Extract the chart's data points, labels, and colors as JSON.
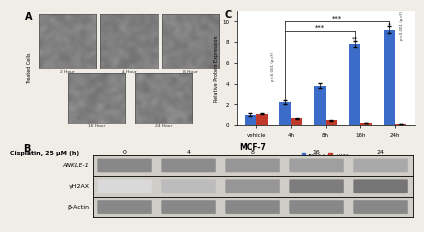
{
  "panel_C": {
    "categories": [
      "vehicle",
      "4h",
      "8h",
      "16h",
      "24h"
    ],
    "ankle1_values": [
      1.0,
      2.2,
      3.8,
      7.8,
      9.2
    ],
    "yh2ax_values": [
      1.1,
      0.65,
      0.45,
      0.18,
      0.08
    ],
    "ankle1_color": "#3b6cc9",
    "yh2ax_color": "#c0392b",
    "ylabel": "Relative Protein Expression",
    "ylim": [
      0,
      11
    ],
    "yticks": [
      0,
      2,
      4,
      6,
      8,
      10
    ],
    "ankle1_label": "ANKLE-1",
    "yh2ax_label": "γH2AX",
    "ankle1_errors": [
      0.12,
      0.18,
      0.22,
      0.3,
      0.35
    ],
    "yh2ax_errors": [
      0.08,
      0.06,
      0.05,
      0.03,
      0.02
    ]
  },
  "panel_B": {
    "title": "MCF-7",
    "label_left": "Cisplatin, 25 μM (h)",
    "rows": [
      "ANKLE-1",
      "γH2AX",
      "β-Actin"
    ],
    "row_italic": [
      true,
      false,
      false
    ],
    "timepoints": [
      "0",
      "4",
      "8",
      "16",
      "24"
    ],
    "band_patterns": [
      [
        0.62,
        0.6,
        0.55,
        0.5,
        0.45
      ],
      [
        0.2,
        0.35,
        0.55,
        0.68,
        0.72
      ],
      [
        0.62,
        0.62,
        0.62,
        0.62,
        0.62
      ]
    ],
    "bg_color": "#ddd8d0",
    "band_color_base": 0.85
  },
  "panel_A": {
    "label": "Treated Cells",
    "timepoints": [
      "2 Hour",
      "4 Hour",
      "8 Hour",
      "16 Hour",
      "24 Hour"
    ],
    "noise_mean": 0.6,
    "noise_std": 0.1
  },
  "bg_color": "#f0ece6"
}
